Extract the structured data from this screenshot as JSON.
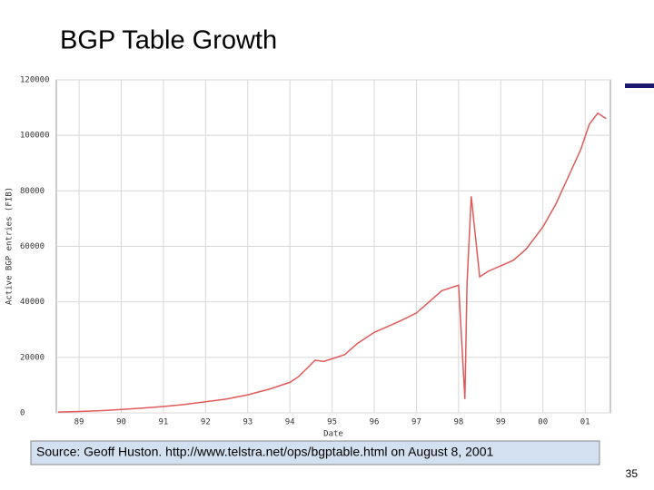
{
  "slide": {
    "title": "BGP Table Growth",
    "source": "Source:  Geoff Huston. http://www.telstra.net/ops/bgptable.html on August 8, 2001",
    "page_number": "35"
  },
  "chart_data": {
    "type": "line",
    "xlabel": "Date",
    "ylabel": "Active BGP entries (FIB)",
    "color": "#e05a5a",
    "grid": true,
    "x": [
      1988.5,
      1989.0,
      1989.5,
      1990.0,
      1990.5,
      1991.0,
      1991.5,
      1992.0,
      1992.5,
      1993.0,
      1993.5,
      1994.0,
      1994.2,
      1994.4,
      1994.6,
      1994.8,
      1995.0,
      1995.3,
      1995.6,
      1996.0,
      1996.3,
      1996.6,
      1997.0,
      1997.3,
      1997.6,
      1998.0,
      1998.15,
      1998.2,
      1998.3,
      1998.5,
      1998.7,
      1999.0,
      1999.3,
      1999.6,
      2000.0,
      2000.3,
      2000.6,
      2000.9,
      2001.1,
      2001.3,
      2001.5
    ],
    "values": [
      300,
      500,
      800,
      1200,
      1700,
      2300,
      3000,
      4000,
      5000,
      6500,
      8500,
      11000,
      13000,
      16000,
      19000,
      18500,
      19500,
      21000,
      25000,
      29000,
      31000,
      33000,
      36000,
      40000,
      44000,
      46000,
      5000,
      47000,
      78000,
      49000,
      51000,
      53000,
      55000,
      59000,
      67000,
      75000,
      85000,
      95000,
      104000,
      108000,
      106000
    ],
    "xlim": [
      1988.46,
      2001.6
    ],
    "ylim": [
      0,
      120000
    ],
    "xticks": [
      {
        "value": 1989,
        "label": "89"
      },
      {
        "value": 1990,
        "label": "90"
      },
      {
        "value": 1991,
        "label": "91"
      },
      {
        "value": 1992,
        "label": "92"
      },
      {
        "value": 1993,
        "label": "93"
      },
      {
        "value": 1994,
        "label": "94"
      },
      {
        "value": 1995,
        "label": "95"
      },
      {
        "value": 1996,
        "label": "96"
      },
      {
        "value": 1997,
        "label": "97"
      },
      {
        "value": 1998,
        "label": "98"
      },
      {
        "value": 1999,
        "label": "99"
      },
      {
        "value": 2000,
        "label": "00"
      },
      {
        "value": 2001,
        "label": "01"
      }
    ],
    "yticks": [
      0,
      20000,
      40000,
      60000,
      80000,
      100000,
      120000
    ]
  }
}
